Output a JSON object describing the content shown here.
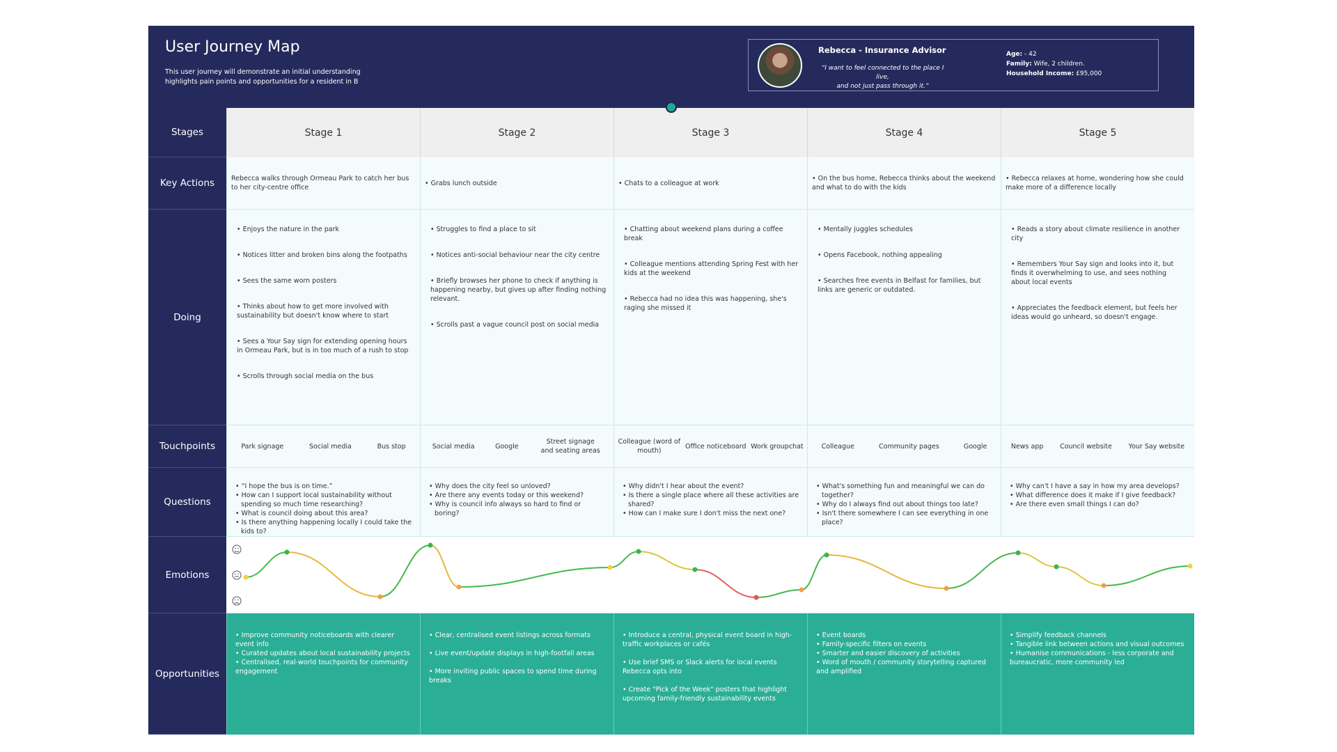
{
  "header": {
    "title": "User Journey Map",
    "description": [
      "This user journey will demonstrate an initial understanding",
      "highlights pain points and opportunities for a resident in B"
    ]
  },
  "persona": {
    "name": "Rebecca - Insurance Advisor",
    "quote": [
      "“I want to feel connected to the place I live,",
      "and not just pass through it.”"
    ],
    "details": [
      {
        "label": "Age:",
        "value": " - 42"
      },
      {
        "label": "Family:",
        "value": " Wife, 2 children."
      },
      {
        "label": "Household Income:",
        "value": " £95,000"
      }
    ]
  },
  "row_labels": [
    "Stages",
    "Key Actions",
    "Doing",
    "Touchpoints",
    "Questions",
    "Emotions",
    "Opportunities"
  ],
  "stages": [
    "Stage 1",
    "Stage 2",
    "Stage 3",
    "Stage 4",
    "Stage 5"
  ],
  "key_actions": [
    "Rebecca walks through Ormeau Park to catch her bus to her city-centre office",
    "• Grabs lunch outside",
    "• Chats to a colleague at work",
    "• On the bus home, Rebecca thinks about the weekend and what to do with the kids",
    "• Rebecca relaxes at home, wondering how she could make more of a difference locally"
  ],
  "doing": [
    [
      "• Enjoys the nature in the park",
      "• Notices litter and broken bins along the footpaths",
      "• Sees the same worn posters",
      "• Thinks about how to get more involved with sustainability but doesn't know where to start",
      "• Sees a Your Say sign for extending opening hours in Ormeau Park, but is in too much of a rush to stop",
      "• Scrolls through social media on the bus"
    ],
    [
      "• Struggles to find a place to sit",
      "• Notices anti-social behaviour near the city centre",
      "• Briefly browses her phone to check if anything is happening nearby, but gives up after finding nothing relevant.",
      "• Scrolls past a vague council post on social media"
    ],
    [
      "• Chatting about weekend plans during a coffee break",
      "• Colleague mentions attending Spring Fest with her kids at the weekend",
      "• Rebecca had no idea this was happening, she's raging she missed it"
    ],
    [
      "• Mentally juggles schedules",
      "• Opens Facebook, nothing appealing",
      "• Searches free events in Belfast for families, but links are generic or outdated."
    ],
    [
      "• Reads a story about climate resilience in another city",
      "• Remembers Your Say sign and looks into it, but finds it overwhelming to use, and sees nothing about local events",
      "• Appreciates the feedback element, but feels her ideas would go unheard, so doesn't engage."
    ]
  ],
  "touchpoints": [
    [
      "Park signage",
      "Social media",
      "Bus stop"
    ],
    [
      "Social media",
      "Google",
      "Street signage and seating areas"
    ],
    [
      "Colleague (word of mouth)",
      "Office noticeboard",
      "Work groupchat"
    ],
    [
      "Colleague",
      "Community pages",
      "Google"
    ],
    [
      "News app",
      "Council website",
      "Your Say website"
    ]
  ],
  "questions": [
    [
      "• “I hope the bus is on time.”",
      "• How can I support local sustainability without spending so much time researching?",
      "• What is council doing about this area?",
      "• Is there anything happening locally I could take the kids to?"
    ],
    [
      "• Why does the city feel so unloved?",
      "• Are there any events today or this weekend?",
      "• Why is council info always so hard to find or boring?"
    ],
    [
      "• Why didn't I hear about the event?",
      "• Is there a single place where all these activities are shared?",
      "• How can I make sure I don't miss the next one?"
    ],
    [
      "• What's something fun and meaningful we can do together?",
      "• Why do I always find out about things too late?",
      "• Isn't there somewhere I can see everything in one place?"
    ],
    [
      "• Why can't I have a say in how my area develops?",
      "• What difference does it make if I give feedback?",
      "• Are there even small things I can do?"
    ]
  ],
  "opportunities": [
    [
      "• Improve community noticeboards with clearer event info",
      "• Curated updates about local sustainability projects",
      "• Centralised, real-world touchpoints for community engagement"
    ],
    [
      "• Clear, centralised event listings across formats",
      "• Live event/update displays in high-footfall areas",
      "• More inviting public spaces to spend time during breaks"
    ],
    [
      "• Introduce a central, physical event board in high-traffic workplaces or cafés",
      "• Use brief SMS or Slack alerts for local events Rebecca opts into",
      "• Create \"Pick of the Week\" posters that highlight upcoming family-friendly sustainability events"
    ],
    [
      "• Event boards",
      "• Family-specific filters on events",
      "• Smarter and easier discovery of activities",
      "• Word of mouth / community storytelling captured and amplified"
    ],
    [
      "• Simplify feedback channels",
      "• Tangible link between actions and visual outcomes",
      "• Humanise communications - less corporate and bureaucratic, more community led"
    ]
  ]
}
